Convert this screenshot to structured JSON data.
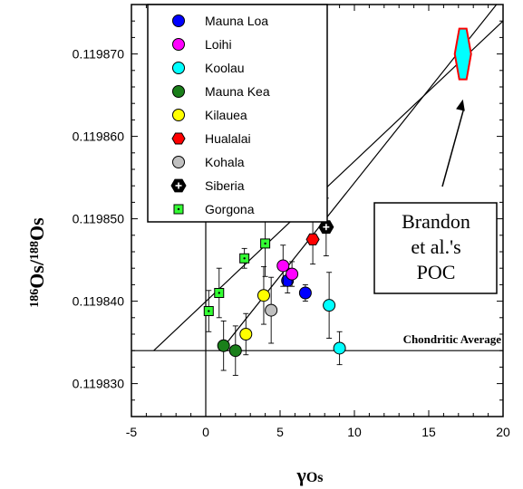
{
  "chart_data": {
    "type": "scatter",
    "xlabel_main": "γ",
    "xlabel_sub": "Os",
    "ylabel_sup1": "186",
    "ylabel_base1": "Os/",
    "ylabel_sup2": "188",
    "ylabel_base2": "Os",
    "xlim": [
      -5,
      20
    ],
    "ylim": [
      0.119826,
      0.119876
    ],
    "xticks": [
      -5,
      0,
      5,
      10,
      15,
      20
    ],
    "xtick_labels": [
      "-5",
      "0",
      "5",
      "10",
      "15",
      "20"
    ],
    "yticks": [
      0.11983,
      0.11984,
      0.11985,
      0.11986,
      0.11987
    ],
    "ytick_labels": [
      "0.119830",
      "0.119840",
      "0.119850",
      "0.119860",
      "0.119870"
    ],
    "grid": false,
    "legend_position": "top-left",
    "chondritic_average": {
      "label": "Chondritic Average",
      "y": 0.119834
    },
    "reference_line_x": 0,
    "lines": [
      {
        "x": [
          -3.5,
          20
        ],
        "y": [
          0.119834,
          0.119874
        ]
      },
      {
        "x": [
          1.0,
          20
        ],
        "y": [
          0.119834,
          0.119877
        ]
      }
    ],
    "annotation": {
      "lines": [
        "Brandon",
        "et al.'s",
        "POC"
      ],
      "arrow_to": {
        "x": 17.3,
        "y": 0.119868
      }
    },
    "series": [
      {
        "name": "Mauna Loa",
        "marker": "circle",
        "color": "#0000FF",
        "points": [
          {
            "x": 5.5,
            "y": 0.1198425,
            "err": 1.5e-06
          },
          {
            "x": 6.7,
            "y": 0.119841,
            "err": 1e-06
          }
        ]
      },
      {
        "name": "Loihi",
        "marker": "circle",
        "color": "#FF00FF",
        "points": [
          {
            "x": 5.2,
            "y": 0.1198443,
            "err": 2.5e-06
          },
          {
            "x": 5.8,
            "y": 0.1198433,
            "err": 1.5e-06
          }
        ]
      },
      {
        "name": "Koolau",
        "marker": "circle",
        "color": "#00FFFF",
        "points": [
          {
            "x": 8.3,
            "y": 0.1198395,
            "err": 4e-06
          },
          {
            "x": 9.0,
            "y": 0.1198343,
            "err": 2e-06
          }
        ]
      },
      {
        "name": "Mauna Kea",
        "marker": "circle",
        "color": "#1A7F1A",
        "points": [
          {
            "x": 1.2,
            "y": 0.1198346,
            "err": 3e-06
          },
          {
            "x": 2.0,
            "y": 0.119834,
            "err": 3e-06
          }
        ]
      },
      {
        "name": "Kilauea",
        "marker": "circle",
        "color": "#FFFF00",
        "points": [
          {
            "x": 2.7,
            "y": 0.119836,
            "err": 2.5e-06
          },
          {
            "x": 3.9,
            "y": 0.1198407,
            "err": 3.5e-06
          }
        ]
      },
      {
        "name": "Hualalai",
        "marker": "hexagon",
        "color": "#FF0000",
        "points": [
          {
            "x": 7.2,
            "y": 0.1198475,
            "err": 3e-06
          }
        ]
      },
      {
        "name": "Kohala",
        "marker": "circle",
        "color": "#C0C0C0",
        "points": [
          {
            "x": 4.4,
            "y": 0.1198389,
            "err": 4e-06
          }
        ]
      },
      {
        "name": "Siberia",
        "marker": "hexagon-plus",
        "color": "#000000",
        "points": [
          {
            "x": 8.1,
            "y": 0.119849,
            "err": 3.5e-06
          }
        ]
      },
      {
        "name": "Gorgona",
        "marker": "square-dot",
        "color": "#33FF33",
        "points": [
          {
            "x": 0.2,
            "y": 0.1198388,
            "err": 2.5e-06
          },
          {
            "x": 0.9,
            "y": 0.119841,
            "err": 3e-06
          },
          {
            "x": 2.6,
            "y": 0.1198452,
            "err": 1.2e-06
          },
          {
            "x": 4.0,
            "y": 0.119847,
            "err": 4e-06
          }
        ]
      }
    ],
    "highlight": {
      "name": "POC",
      "marker": "hexagon-large",
      "color": "#00FFFF",
      "stroke": "#FF0000",
      "x": 17.3,
      "y": 0.11987
    }
  }
}
